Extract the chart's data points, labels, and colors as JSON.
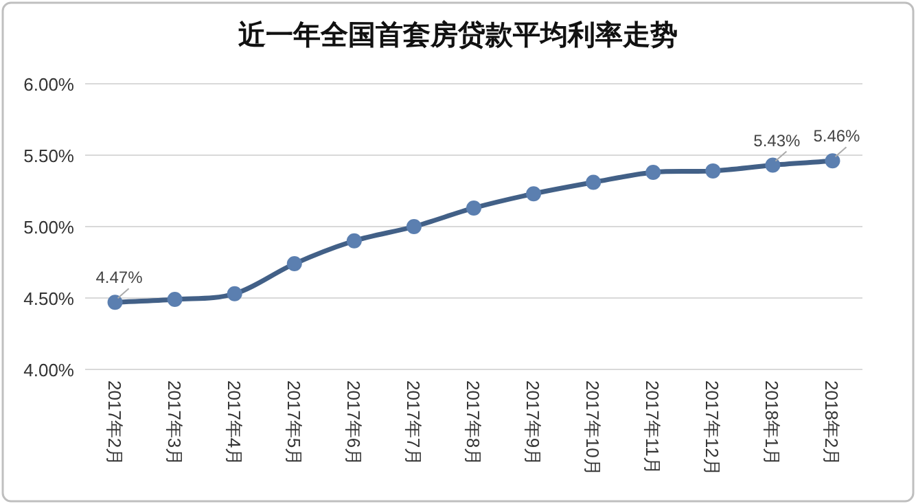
{
  "chart_data": {
    "type": "line",
    "title": "近一年全国首套房贷款平均利率走势",
    "categories": [
      "2017年2月",
      "2017年3月",
      "2017年4月",
      "2017年5月",
      "2017年6月",
      "2017年7月",
      "2017年8月",
      "2017年9月",
      "2017年10月",
      "2017年11月",
      "2017年12月",
      "2018年1月",
      "2018年2月"
    ],
    "series": [
      {
        "color": "#426087",
        "values": [
          4.47,
          4.49,
          4.53,
          4.74,
          4.9,
          5.0,
          5.13,
          5.23,
          5.31,
          5.38,
          5.39,
          5.43,
          5.46
        ],
        "value_labels": [
          "4.47%",
          null,
          null,
          null,
          null,
          null,
          null,
          null,
          null,
          null,
          null,
          "5.43%",
          "5.46%"
        ]
      }
    ],
    "ylim": [
      4.0,
      6.0
    ],
    "yticks": [
      {
        "value": 4.0,
        "label": "4.00%"
      },
      {
        "value": 4.5,
        "label": "4.50%"
      },
      {
        "value": 5.0,
        "label": "5.00%"
      },
      {
        "value": 5.5,
        "label": "5.50%"
      },
      {
        "value": 6.0,
        "label": "6.00%"
      }
    ],
    "grid": "y",
    "marker": "circle",
    "line_style": "solid"
  }
}
